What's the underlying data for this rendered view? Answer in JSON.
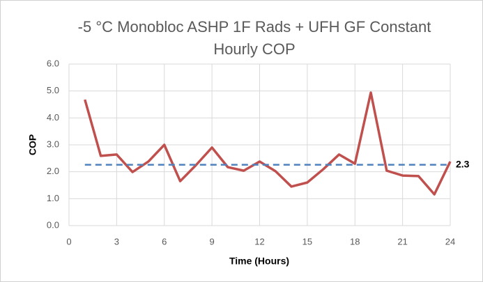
{
  "chart_data": {
    "type": "line",
    "title": [
      "-5 °C Monobloc ASHP 1F Rads + UFH GF Constant",
      "Hourly COP"
    ],
    "x_label": "Time (Hours)",
    "y_label": "COP",
    "x": [
      1,
      2,
      3,
      4,
      5,
      6,
      7,
      8,
      9,
      10,
      11,
      12,
      13,
      14,
      15,
      16,
      17,
      18,
      19,
      20,
      21,
      22,
      23,
      24
    ],
    "series": [
      {
        "color": "#c0504d",
        "values": [
          4.68,
          2.59,
          2.64,
          1.99,
          2.38,
          3.0,
          1.65,
          2.25,
          2.9,
          2.17,
          2.04,
          2.38,
          2.02,
          1.45,
          1.6,
          2.09,
          2.64,
          2.3,
          4.94,
          2.04,
          1.86,
          1.84,
          1.16,
          2.38
        ]
      }
    ],
    "reference_line": {
      "value": 2.26,
      "label": "2.3",
      "x": [
        1,
        24
      ],
      "color": "#4f81bd",
      "dashed": true
    },
    "xlim": [
      0,
      24
    ],
    "xticks": [
      0,
      3,
      6,
      9,
      12,
      15,
      18,
      21,
      24
    ],
    "ylim": [
      0,
      6
    ],
    "yticks": [
      {
        "value": 0,
        "label": "0.0"
      },
      {
        "value": 1,
        "label": "1.0"
      },
      {
        "value": 2,
        "label": "2.0"
      },
      {
        "value": 3,
        "label": "3.0"
      },
      {
        "value": 4,
        "label": "4.0"
      },
      {
        "value": 5,
        "label": "5.0"
      },
      {
        "value": 6,
        "label": "6.0"
      }
    ],
    "grid": true
  }
}
